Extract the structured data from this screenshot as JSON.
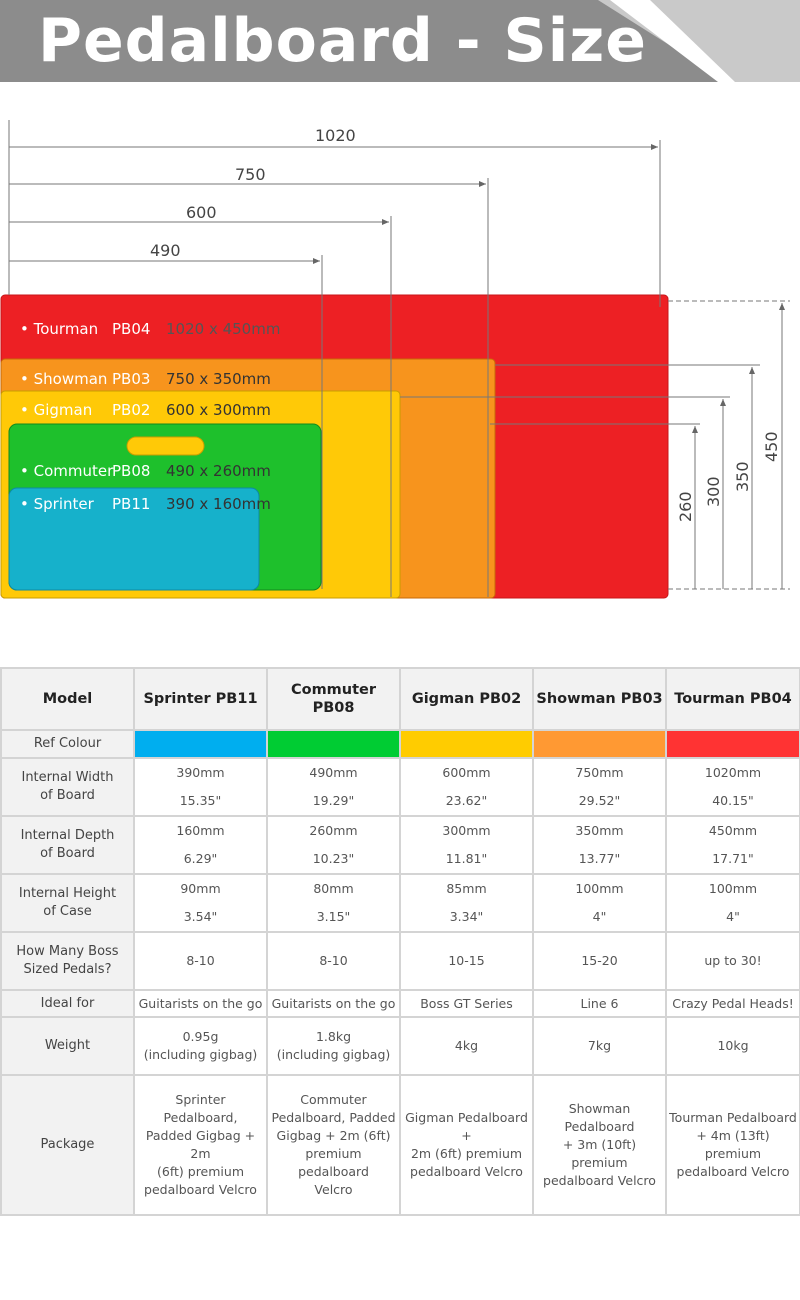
{
  "page": {
    "title": "Pedalboard - Size"
  },
  "diagram": {
    "width_dims": [
      "1020",
      "750",
      "600",
      "490"
    ],
    "height_dims": [
      "450",
      "350",
      "300",
      "260"
    ],
    "boards": [
      {
        "bullet": "• Tourman",
        "code": "PB04",
        "size": "1020 x 450mm",
        "color": "#ed2024"
      },
      {
        "bullet": "• Showman",
        "code": "PB03",
        "size": "750 x 350mm",
        "color": "#f7941d"
      },
      {
        "bullet": "• Gigman",
        "code": "PB02",
        "size": "600 x 300mm",
        "color": "#ffc907"
      },
      {
        "bullet": "• Commuter",
        "code": "PB08",
        "size": "490 x 260mm",
        "color": "#1ec02c"
      },
      {
        "bullet": "• Sprinter",
        "code": "PB11",
        "size": "390 x 160mm",
        "color": "#16b1cb"
      }
    ]
  },
  "table": {
    "header": [
      "Model",
      "Sprinter PB11",
      "Commuter PB08",
      "Gigman PB02",
      "Showman PB03",
      "Tourman PB04"
    ],
    "ref_colour_label": "Ref Colour",
    "ref_colours": [
      "#00aeef",
      "#00cc33",
      "#ffcc00",
      "#ff9933",
      "#ff3333"
    ],
    "rows": [
      {
        "label": [
          "Internal Width",
          "of Board"
        ],
        "values": [
          [
            "390mm",
            "15.35\""
          ],
          [
            "490mm",
            "19.29\""
          ],
          [
            "600mm",
            "23.62\""
          ],
          [
            "750mm",
            "29.52\""
          ],
          [
            "1020mm",
            "40.15\""
          ]
        ]
      },
      {
        "label": [
          "Internal Depth",
          "of Board"
        ],
        "values": [
          [
            "160mm",
            "6.29\""
          ],
          [
            "260mm",
            "10.23\""
          ],
          [
            "300mm",
            "11.81\""
          ],
          [
            "350mm",
            "13.77\""
          ],
          [
            "450mm",
            "17.71\""
          ]
        ]
      },
      {
        "label": [
          "Internal Height",
          "of Case"
        ],
        "values": [
          [
            "90mm",
            "3.54\""
          ],
          [
            "80mm",
            "3.15\""
          ],
          [
            "85mm",
            "3.34\""
          ],
          [
            "100mm",
            "4\""
          ],
          [
            "100mm",
            "4\""
          ]
        ]
      }
    ],
    "pedals": {
      "label": [
        "How Many Boss",
        "Sized Pedals?"
      ],
      "values": [
        "8-10",
        "8-10",
        "10-15",
        "15-20",
        "up to 30!"
      ]
    },
    "ideal": {
      "label": "Ideal for",
      "values": [
        "Guitarists on the go",
        "Guitarists on the go",
        "Boss GT Series",
        "Line 6",
        "Crazy Pedal Heads!"
      ]
    },
    "weight": {
      "label": "Weight",
      "values": [
        [
          "0.95g",
          "(including gigbag)"
        ],
        [
          "1.8kg",
          "(including gigbag)"
        ],
        [
          "4kg"
        ],
        [
          "7kg"
        ],
        [
          "10kg"
        ]
      ]
    },
    "package": {
      "label": "Package",
      "values": [
        [
          "Sprinter Pedalboard,",
          "Padded Gigbag + 2m",
          "(6ft) premium",
          "pedalboard Velcro"
        ],
        [
          "Commuter",
          "Pedalboard, Padded",
          "Gigbag + 2m (6ft)",
          "premium pedalboard",
          "Velcro"
        ],
        [
          "Gigman Pedalboard +",
          "2m (6ft) premium",
          "pedalboard Velcro"
        ],
        [
          "Showman Pedalboard",
          "+ 3m (10ft) premium",
          "pedalboard Velcro"
        ],
        [
          "Tourman Pedalboard",
          "+ 4m (13ft) premium",
          "pedalboard Velcro"
        ]
      ]
    }
  }
}
